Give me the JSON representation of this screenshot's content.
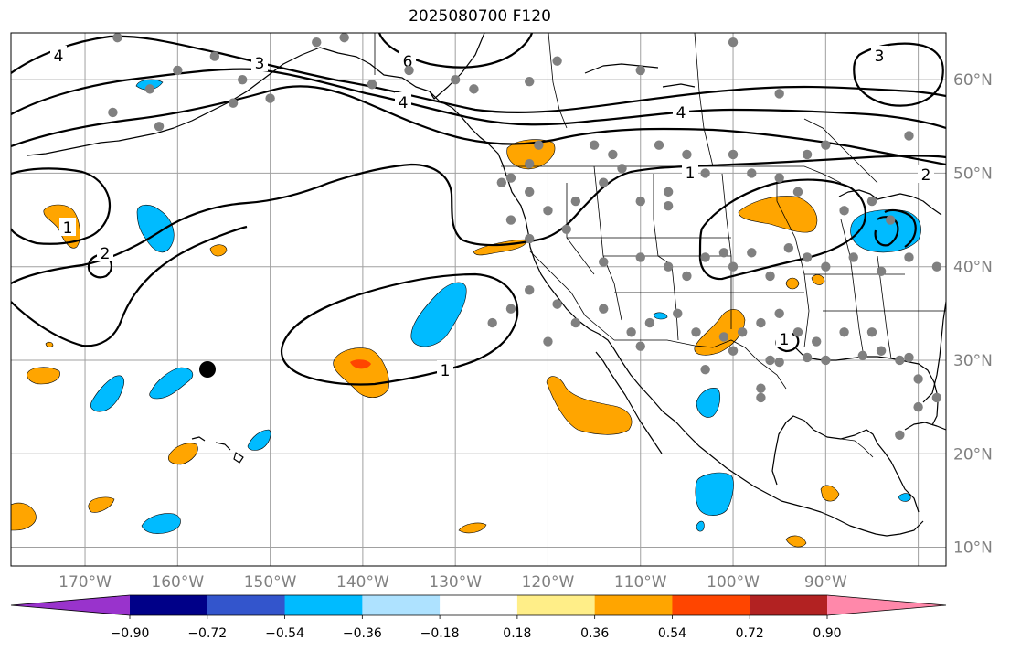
{
  "title": "2025080700 F120",
  "map": {
    "projection": "plate-carree",
    "lon_range": [
      -178,
      -77
    ],
    "lat_range": [
      8,
      65
    ],
    "lat_ticks": [
      "10°N",
      "20°N",
      "30°N",
      "40°N",
      "50°N",
      "60°N"
    ],
    "lon_ticks": [
      "170°W",
      "160°W",
      "150°W",
      "140°W",
      "130°W",
      "120°W",
      "110°W",
      "100°W",
      "90°W"
    ],
    "contour_labels": [
      "4",
      "3",
      "6",
      "4",
      "4",
      "3",
      "1",
      "2",
      "1",
      "2",
      "1",
      "1"
    ],
    "marker": {
      "type": "black-dot",
      "lon": -159,
      "lat": 29
    }
  },
  "colorbar": {
    "colors": [
      "#9933cc",
      "#000088",
      "#3355cc",
      "#00bbff",
      "#aee2ff",
      "#ffffff",
      "#ffee88",
      "#ffa500",
      "#ff4500",
      "#b22222",
      "#ff88aa"
    ],
    "tick_labels": [
      "−0.90",
      "−0.72",
      "−0.54",
      "−0.36",
      "−0.18",
      "0.18",
      "0.36",
      "0.54",
      "0.72",
      "0.90"
    ]
  },
  "colors": {
    "station_dot": "#808080",
    "grid": "#a0a0a0",
    "contour": "#000000",
    "coast": "#000000"
  }
}
